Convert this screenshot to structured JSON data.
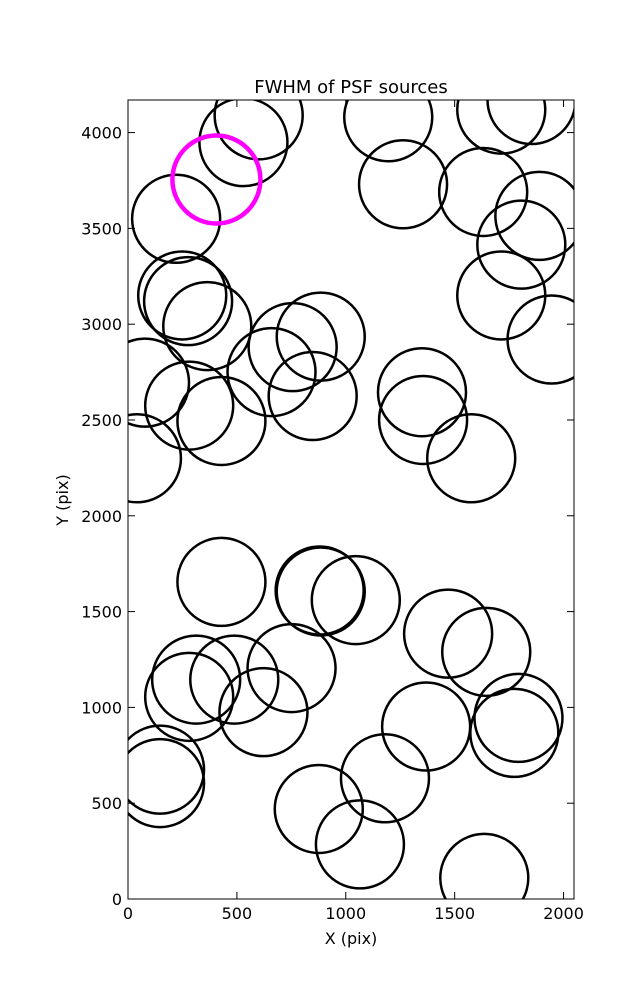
{
  "chart_data": {
    "type": "scatter",
    "title": "FWHM of PSF sources",
    "x_label": "X (pix)",
    "y_label": "Y (pix)",
    "xlim": [
      0,
      2048
    ],
    "ylim": [
      0,
      4170
    ],
    "xticks": [
      0,
      500,
      1000,
      1500,
      2000
    ],
    "yticks": [
      0,
      500,
      1000,
      1500,
      2000,
      2500,
      3000,
      3500,
      4000
    ],
    "marker": "circle",
    "series": [
      {
        "color": "#000000",
        "x": [
          600,
          530,
          1195,
          1263,
          1714,
          1853,
          1631,
          1889,
          1806,
          1714,
          1945,
          221,
          249,
          276,
          364,
          78,
          281,
          429,
          659,
          756,
          885,
          848,
          1350,
          1355,
          1576,
          41,
          429,
          880,
          885,
          1046,
          1470,
          1645,
          751,
          488,
          313,
          281,
          622,
          1793,
          1774,
          1369,
          147,
          147,
          1180,
          876,
          1065,
          1636
        ],
        "y": [
          4090,
          3950,
          4080,
          3730,
          4120,
          4170,
          3690,
          3565,
          3415,
          3150,
          2920,
          3550,
          3150,
          3120,
          2990,
          2695,
          2575,
          2495,
          2750,
          2880,
          2935,
          2625,
          2645,
          2500,
          2300,
          2300,
          1655,
          1610,
          1605,
          1560,
          1385,
          1290,
          1205,
          1145,
          1145,
          1055,
          975,
          945,
          867,
          900,
          675,
          605,
          630,
          470,
          285,
          110
        ]
      },
      {
        "color": "#ff00ff",
        "x": [
          406
        ],
        "y": [
          3755
        ]
      }
    ]
  }
}
